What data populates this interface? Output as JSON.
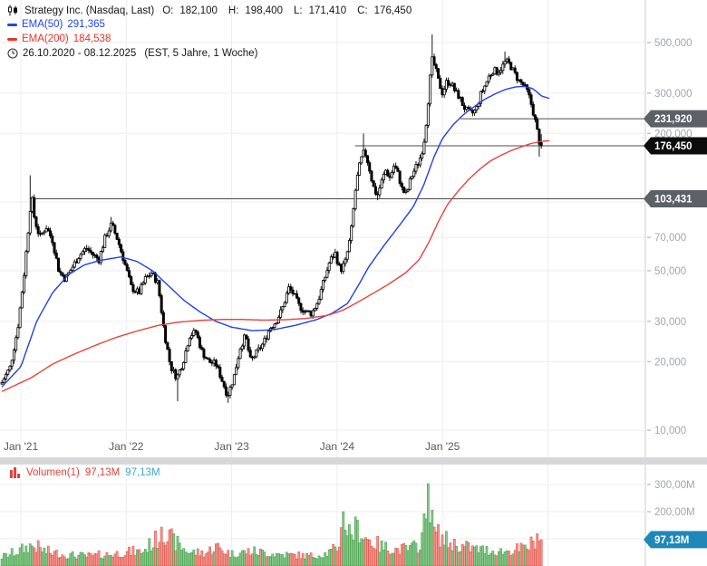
{
  "header": {
    "title": "Strategy Inc. (Nasdaq, Last)",
    "ohlc": {
      "o_label": "O:",
      "o": "182,100",
      "h_label": "H:",
      "h": "198,400",
      "l_label": "L:",
      "l": "171,410",
      "c_label": "C:",
      "c": "176,450"
    },
    "indicators": [
      {
        "label": "EMA(50)",
        "value": "291,365",
        "color": "#2244ee"
      },
      {
        "label": "EMA(200)",
        "value": "184,538",
        "color": "#ee3322"
      }
    ],
    "daterange": "26.10.2020 - 08.12.2025",
    "range_info": "(EST, 5 Jahre, 1 Woche)"
  },
  "volume_legend": {
    "label": "Volumen(1)",
    "value_red": "97,13M",
    "value_blue": "97,13M",
    "label_color": "#e2423b",
    "blue_color": "#45a6cc"
  },
  "price_axis": {
    "ticks": [
      {
        "label": "500,000",
        "value": 500
      },
      {
        "label": "300,000",
        "value": 300
      },
      {
        "label": "200,000",
        "value": 200
      },
      {
        "label": "70,000",
        "value": 70
      },
      {
        "label": "50,000",
        "value": 50
      },
      {
        "label": "30,000",
        "value": 30
      },
      {
        "label": "20,000",
        "value": 20
      },
      {
        "label": "10,000",
        "value": 10
      }
    ],
    "grid_values": [
      500,
      300,
      200,
      100,
      70,
      50,
      30,
      20,
      10
    ]
  },
  "time_axis": {
    "ticks": [
      {
        "label": "Jan '21",
        "t": 2021
      },
      {
        "label": "Jan '22",
        "t": 2022
      },
      {
        "label": "Jan '23",
        "t": 2023
      },
      {
        "label": "Jan '24",
        "t": 2024
      },
      {
        "label": "Jan '25",
        "t": 2025
      },
      {
        "label": "",
        "t": 2026
      }
    ]
  },
  "volume_axis": {
    "ticks": [
      {
        "label": "300,00M",
        "value": 300
      },
      {
        "label": "200,00M",
        "value": 200
      }
    ],
    "grid_values": [
      300,
      200,
      100
    ]
  },
  "badges": [
    {
      "label": "231,920",
      "price": 231.92,
      "color": "#5c6167",
      "kind": "drawn-line-marker"
    },
    {
      "label": "176,450",
      "price": 176.45,
      "color": "#0c0c0c",
      "kind": "last-price-marker"
    },
    {
      "label": "103,431",
      "price": 103.431,
      "color": "#5c6167",
      "kind": "drawn-line-marker"
    }
  ],
  "volume_badge": {
    "label": "97,13M",
    "value": 97.13,
    "color": "#2088b8"
  },
  "hlines": [
    {
      "price": 231.92,
      "from_t": 2025.17
    },
    {
      "price": 176.45,
      "from_t": 2024.17
    },
    {
      "price": 103.431,
      "from_t": 2021.086
    }
  ],
  "colors": {
    "candle_up_fill": "#ffffff",
    "candle_down_fill": "#000000",
    "candle_stroke": "#000000",
    "ema50": "#2140e8",
    "ema200": "#e8423a",
    "grid": "#ededf0",
    "axis_line": "#c8ccd0",
    "tick_text": "#a2a6aa",
    "year_text": "#55585c",
    "hline": "#4c4c4c",
    "separator": "#d6d9db",
    "vol_up_fill": "#8bc98f",
    "vol_up_stroke": "#44a04a",
    "vol_down_fill": "#f29a93",
    "vol_down_stroke": "#df5048",
    "badge_text": "#ffffff"
  },
  "chart_data": {
    "type": "candlestick+volume",
    "symbol": "Strategy Inc. (Nasdaq, Last)",
    "timeframe": "1 Woche",
    "span": "5 Jahre",
    "scale": "log",
    "xlim": [
      2020.82,
      2025.94
    ],
    "ylim_price": [
      10,
      560
    ],
    "ylim_volume_m": [
      0,
      370
    ],
    "last_candle": {
      "open": 182.1,
      "high": 198.4,
      "low": 171.41,
      "close": 176.45,
      "volume_m": 97.13
    },
    "ema50_last": 291.365,
    "ema200_last": 184.538,
    "price_keyframes": [
      [
        2020.82,
        16.2
      ],
      [
        2020.9,
        19
      ],
      [
        2020.97,
        28
      ],
      [
        2021.03,
        48
      ],
      [
        2021.08,
        85
      ],
      [
        2021.1,
        108
      ],
      [
        2021.13,
        84
      ],
      [
        2021.18,
        70
      ],
      [
        2021.24,
        78
      ],
      [
        2021.3,
        68
      ],
      [
        2021.36,
        50
      ],
      [
        2021.42,
        46
      ],
      [
        2021.48,
        51
      ],
      [
        2021.55,
        58
      ],
      [
        2021.62,
        63
      ],
      [
        2021.68,
        59
      ],
      [
        2021.74,
        56
      ],
      [
        2021.8,
        70
      ],
      [
        2021.86,
        80
      ],
      [
        2021.92,
        68
      ],
      [
        2021.98,
        55
      ],
      [
        2022.05,
        42
      ],
      [
        2022.12,
        40
      ],
      [
        2022.18,
        46
      ],
      [
        2022.24,
        49
      ],
      [
        2022.3,
        44
      ],
      [
        2022.36,
        27
      ],
      [
        2022.42,
        19
      ],
      [
        2022.48,
        17
      ],
      [
        2022.54,
        20
      ],
      [
        2022.6,
        26
      ],
      [
        2022.66,
        27
      ],
      [
        2022.72,
        22
      ],
      [
        2022.78,
        20
      ],
      [
        2022.85,
        19.5
      ],
      [
        2022.9,
        17
      ],
      [
        2022.96,
        14.2
      ],
      [
        2023.02,
        17
      ],
      [
        2023.08,
        23
      ],
      [
        2023.13,
        26
      ],
      [
        2023.18,
        20
      ],
      [
        2023.24,
        22
      ],
      [
        2023.3,
        24
      ],
      [
        2023.36,
        28
      ],
      [
        2023.42,
        30
      ],
      [
        2023.48,
        34
      ],
      [
        2023.54,
        42
      ],
      [
        2023.58,
        40
      ],
      [
        2023.64,
        35
      ],
      [
        2023.7,
        33
      ],
      [
        2023.76,
        32.5
      ],
      [
        2023.82,
        37
      ],
      [
        2023.88,
        46
      ],
      [
        2023.93,
        55
      ],
      [
        2023.98,
        60
      ],
      [
        2024.03,
        50
      ],
      [
        2024.08,
        55
      ],
      [
        2024.13,
        72
      ],
      [
        2024.18,
        120
      ],
      [
        2024.22,
        150
      ],
      [
        2024.26,
        168
      ],
      [
        2024.3,
        145
      ],
      [
        2024.34,
        118
      ],
      [
        2024.38,
        106
      ],
      [
        2024.42,
        122
      ],
      [
        2024.46,
        138
      ],
      [
        2024.5,
        128
      ],
      [
        2024.54,
        145
      ],
      [
        2024.58,
        132
      ],
      [
        2024.62,
        112
      ],
      [
        2024.66,
        108
      ],
      [
        2024.7,
        128
      ],
      [
        2024.74,
        140
      ],
      [
        2024.78,
        152
      ],
      [
        2024.82,
        178
      ],
      [
        2024.85,
        235
      ],
      [
        2024.88,
        340
      ],
      [
        2024.9,
        421
      ],
      [
        2024.93,
        390
      ],
      [
        2024.96,
        340
      ],
      [
        2025.0,
        300
      ],
      [
        2025.04,
        338
      ],
      [
        2025.08,
        332
      ],
      [
        2025.12,
        305
      ],
      [
        2025.16,
        288
      ],
      [
        2025.2,
        262
      ],
      [
        2025.24,
        248
      ],
      [
        2025.28,
        244
      ],
      [
        2025.32,
        255
      ],
      [
        2025.36,
        295
      ],
      [
        2025.4,
        322
      ],
      [
        2025.44,
        355
      ],
      [
        2025.48,
        378
      ],
      [
        2025.52,
        372
      ],
      [
        2025.56,
        388
      ],
      [
        2025.6,
        415
      ],
      [
        2025.64,
        400
      ],
      [
        2025.68,
        368
      ],
      [
        2025.72,
        342
      ],
      [
        2025.76,
        328
      ],
      [
        2025.8,
        308
      ],
      [
        2025.83,
        282
      ],
      [
        2025.86,
        248
      ],
      [
        2025.89,
        215
      ],
      [
        2025.915,
        185
      ],
      [
        2025.94,
        176.45
      ]
    ],
    "extremes": [
      {
        "t": 2021.09,
        "high": 131
      },
      {
        "t": 2021.86,
        "high": 86
      },
      {
        "t": 2022.48,
        "low": 13.4
      },
      {
        "t": 2022.96,
        "low": 13.2
      },
      {
        "t": 2024.26,
        "high": 199.9
      },
      {
        "t": 2024.38,
        "low": 101.9
      },
      {
        "t": 2024.9,
        "high": 543
      },
      {
        "t": 2025.6,
        "high": 457
      },
      {
        "t": 2025.915,
        "low": 158
      }
    ],
    "ema50_keyframes": [
      [
        2020.82,
        15.5
      ],
      [
        2021.0,
        19
      ],
      [
        2021.15,
        30
      ],
      [
        2021.3,
        40
      ],
      [
        2021.45,
        48
      ],
      [
        2021.6,
        53
      ],
      [
        2021.75,
        55.5
      ],
      [
        2021.95,
        57.5
      ],
      [
        2022.1,
        55
      ],
      [
        2022.25,
        50
      ],
      [
        2022.4,
        43
      ],
      [
        2022.55,
        37
      ],
      [
        2022.7,
        33
      ],
      [
        2022.85,
        30
      ],
      [
        2023.0,
        28.3
      ],
      [
        2023.2,
        27.3
      ],
      [
        2023.4,
        27.6
      ],
      [
        2023.6,
        28.8
      ],
      [
        2023.8,
        30.5
      ],
      [
        2023.95,
        32.5
      ],
      [
        2024.1,
        36
      ],
      [
        2024.2,
        43
      ],
      [
        2024.3,
        52
      ],
      [
        2024.45,
        65
      ],
      [
        2024.6,
        80
      ],
      [
        2024.72,
        95
      ],
      [
        2024.82,
        118
      ],
      [
        2024.92,
        158
      ],
      [
        2025.0,
        190
      ],
      [
        2025.1,
        218
      ],
      [
        2025.2,
        242
      ],
      [
        2025.3,
        262
      ],
      [
        2025.4,
        282
      ],
      [
        2025.5,
        298
      ],
      [
        2025.6,
        312
      ],
      [
        2025.7,
        320
      ],
      [
        2025.78,
        321
      ],
      [
        2025.85,
        315
      ],
      [
        2025.9,
        303
      ],
      [
        2025.94,
        291.4
      ],
      [
        2026.02,
        284
      ]
    ],
    "ema200_keyframes": [
      [
        2020.82,
        14.8
      ],
      [
        2021.1,
        17
      ],
      [
        2021.3,
        19.5
      ],
      [
        2021.5,
        21.5
      ],
      [
        2021.7,
        23.5
      ],
      [
        2021.9,
        25.5
      ],
      [
        2022.1,
        27.2
      ],
      [
        2022.3,
        28.8
      ],
      [
        2022.5,
        29.8
      ],
      [
        2022.7,
        30.3
      ],
      [
        2022.9,
        30.6
      ],
      [
        2023.1,
        30.6
      ],
      [
        2023.3,
        30.4
      ],
      [
        2023.5,
        30.5
      ],
      [
        2023.7,
        30.9
      ],
      [
        2023.9,
        31.8
      ],
      [
        2024.05,
        33.5
      ],
      [
        2024.2,
        36.5
      ],
      [
        2024.35,
        40
      ],
      [
        2024.5,
        44
      ],
      [
        2024.65,
        49
      ],
      [
        2024.78,
        56
      ],
      [
        2024.88,
        68
      ],
      [
        2024.96,
        82
      ],
      [
        2025.05,
        98
      ],
      [
        2025.15,
        112
      ],
      [
        2025.25,
        126
      ],
      [
        2025.35,
        139
      ],
      [
        2025.45,
        151
      ],
      [
        2025.55,
        160
      ],
      [
        2025.65,
        168
      ],
      [
        2025.75,
        175
      ],
      [
        2025.85,
        181
      ],
      [
        2025.94,
        184.5
      ],
      [
        2026.02,
        186
      ]
    ],
    "volume_envelope_m": [
      [
        2020.82,
        32
      ],
      [
        2021.0,
        55
      ],
      [
        2021.1,
        75
      ],
      [
        2021.25,
        50
      ],
      [
        2021.45,
        38
      ],
      [
        2021.65,
        35
      ],
      [
        2021.85,
        42
      ],
      [
        2022.0,
        48
      ],
      [
        2022.15,
        52
      ],
      [
        2022.3,
        95
      ],
      [
        2022.35,
        120
      ],
      [
        2022.45,
        85
      ],
      [
        2022.6,
        50
      ],
      [
        2022.75,
        45
      ],
      [
        2022.85,
        70
      ],
      [
        2023.0,
        42
      ],
      [
        2023.15,
        52
      ],
      [
        2023.3,
        48
      ],
      [
        2023.45,
        42
      ],
      [
        2023.6,
        38
      ],
      [
        2023.75,
        35
      ],
      [
        2023.9,
        45
      ],
      [
        2024.0,
        60
      ],
      [
        2024.06,
        150
      ],
      [
        2024.12,
        120
      ],
      [
        2024.2,
        130
      ],
      [
        2024.3,
        95
      ],
      [
        2024.4,
        70
      ],
      [
        2024.5,
        62
      ],
      [
        2024.6,
        58
      ],
      [
        2024.7,
        62
      ],
      [
        2024.78,
        72
      ],
      [
        2024.84,
        160
      ],
      [
        2024.87,
        240
      ],
      [
        2024.9,
        150
      ],
      [
        2024.95,
        110
      ],
      [
        2025.05,
        85
      ],
      [
        2025.15,
        72
      ],
      [
        2025.25,
        65
      ],
      [
        2025.35,
        58
      ],
      [
        2025.45,
        55
      ],
      [
        2025.55,
        52
      ],
      [
        2025.65,
        55
      ],
      [
        2025.75,
        60
      ],
      [
        2025.82,
        70
      ],
      [
        2025.87,
        85
      ],
      [
        2025.91,
        115
      ],
      [
        2025.94,
        100
      ]
    ],
    "volume_overrides_m": [
      [
        2024.865,
        303
      ],
      [
        2022.33,
        143
      ],
      [
        2024.06,
        200
      ],
      [
        2025.94,
        97.13
      ]
    ]
  }
}
